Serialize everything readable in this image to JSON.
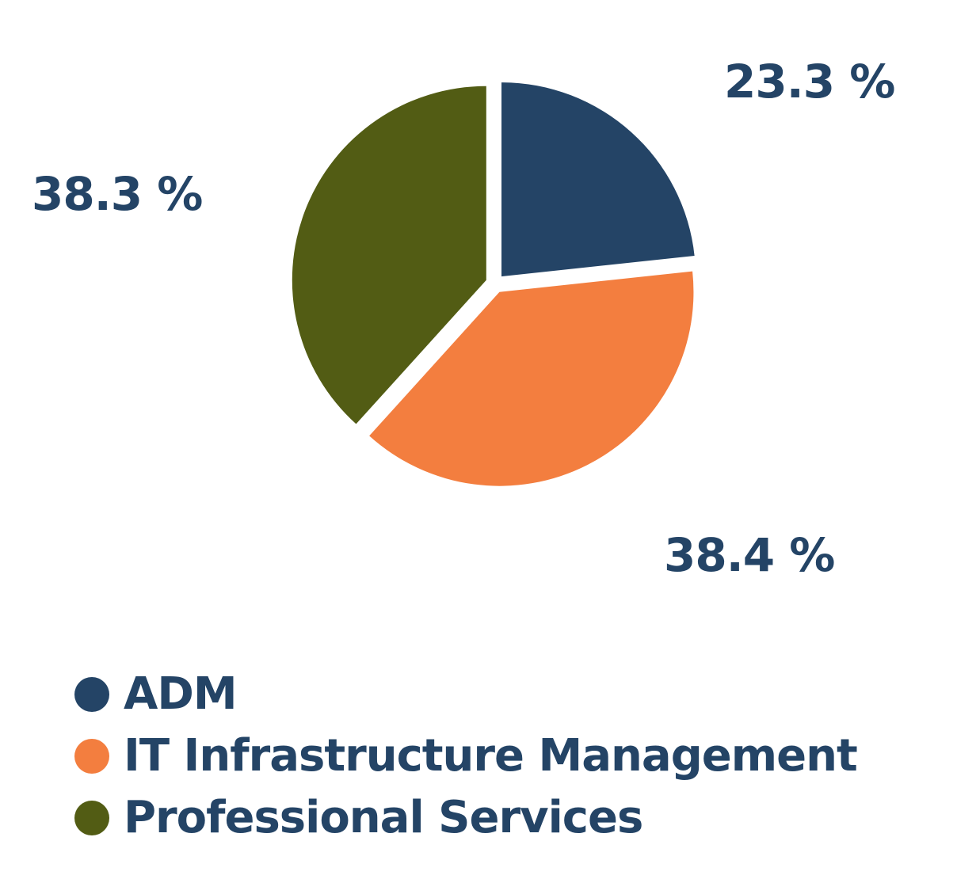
{
  "chart_data": {
    "type": "pie",
    "title": "",
    "label_color": "#244466",
    "start_angle_deg": 0,
    "direction": "clockwise",
    "slices": [
      {
        "name": "ADM",
        "value": 23.3,
        "label": "23.3 %",
        "color": "#244466"
      },
      {
        "name": "IT Infrastructure Management",
        "value": 38.4,
        "label": "38.4 %",
        "color": "#F37E3F"
      },
      {
        "name": "Professional Services",
        "value": 38.3,
        "label": "38.3 %",
        "color": "#525C14"
      }
    ],
    "legend": {
      "placement": "bottom-left",
      "items": [
        {
          "label": "ADM",
          "color": "#244466"
        },
        {
          "label": "IT Infrastructure Management",
          "color": "#F37E3F"
        },
        {
          "label": "Professional Services",
          "color": "#525C14"
        }
      ]
    }
  }
}
